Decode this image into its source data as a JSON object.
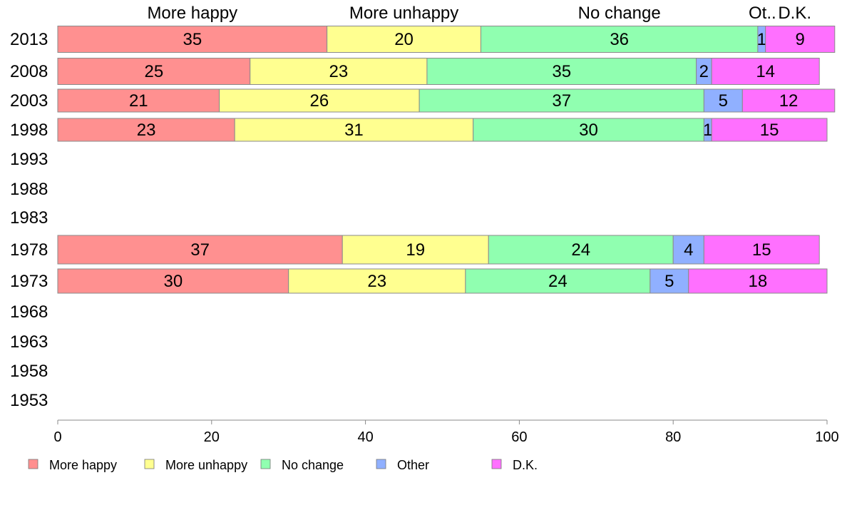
{
  "chart_data": {
    "type": "bar",
    "orientation": "horizontal",
    "stacked": true,
    "title": "",
    "xlabel": "",
    "ylabel": "",
    "xlim": [
      0,
      100
    ],
    "xticks": [
      0,
      20,
      40,
      60,
      80,
      100
    ],
    "grid": false,
    "categories": [
      "2013",
      "2008",
      "2003",
      "1998",
      "1993",
      "1988",
      "1983",
      "1978",
      "1973",
      "1968",
      "1963",
      "1958",
      "1953"
    ],
    "series": [
      {
        "name": "More happy",
        "color": "#ff9090",
        "values": [
          35,
          25,
          21,
          23,
          null,
          null,
          null,
          37,
          30,
          null,
          null,
          null,
          null
        ]
      },
      {
        "name": "More unhappy",
        "color": "#ffff90",
        "values": [
          20,
          23,
          26,
          31,
          null,
          null,
          null,
          19,
          23,
          null,
          null,
          null,
          null
        ]
      },
      {
        "name": "No change",
        "color": "#90ffb0",
        "values": [
          36,
          35,
          37,
          30,
          null,
          null,
          null,
          24,
          24,
          null,
          null,
          null,
          null
        ]
      },
      {
        "name": "Other",
        "color": "#90b0ff",
        "values": [
          1,
          2,
          5,
          1,
          null,
          null,
          null,
          4,
          5,
          null,
          null,
          null,
          null
        ]
      },
      {
        "name": "D.K.",
        "color": "#ff70ff",
        "values": [
          9,
          14,
          12,
          15,
          null,
          null,
          null,
          15,
          18,
          null,
          null,
          null,
          null
        ]
      }
    ],
    "top_labels": [
      "More happy",
      "More unhappy",
      "No change",
      "Ot..",
      "D.K."
    ],
    "legend_position": "bottom"
  }
}
